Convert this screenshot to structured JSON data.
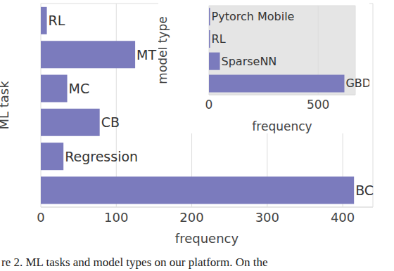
{
  "caption": "re 2. ML tasks and model types on our platform. On the",
  "chart_data": [
    {
      "type": "bar",
      "orientation": "horizontal",
      "categories": [
        "RL",
        "MT",
        "MC",
        "CB",
        "Regression",
        "BC"
      ],
      "values": [
        8,
        125,
        35,
        78,
        30,
        415
      ],
      "color": "#7b7bbd",
      "xlabel": "frequency",
      "ylabel": "ML task",
      "xlim": [
        0,
        440
      ],
      "xticks": [
        0,
        100,
        200,
        300,
        400
      ],
      "grid": true,
      "tick_labels": "x"
    },
    {
      "type": "bar",
      "orientation": "horizontal",
      "categories": [
        "Pytorch Mobile",
        "RL",
        "SparseNN",
        "GBDT"
      ],
      "values": [
        5,
        5,
        50,
        620
      ],
      "color": "#7b7bbd",
      "xlabel": "frequency",
      "ylabel": "model type",
      "xlim": [
        0,
        670
      ],
      "xticks": [
        0,
        500
      ],
      "grid": true,
      "tick_labels": "x"
    }
  ]
}
